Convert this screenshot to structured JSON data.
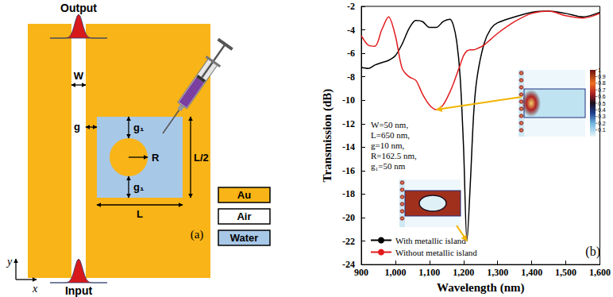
{
  "chart_data": {
    "type": "line",
    "x_label": "Wavelength (nm)",
    "y_label": "Transmission (dB)",
    "x": [
      900,
      920,
      940,
      960,
      980,
      1000,
      1020,
      1040,
      1060,
      1080,
      1100,
      1120,
      1140,
      1160,
      1170,
      1180,
      1190,
      1200,
      1210,
      1220,
      1230,
      1240,
      1260,
      1280,
      1300,
      1350,
      1400,
      1450,
      1500,
      1550,
      1600
    ],
    "xlim": [
      900,
      1600
    ],
    "xticks": [
      900,
      1000,
      1100,
      1200,
      1300,
      1400,
      1500,
      1600
    ],
    "ylim": [
      -24,
      -2
    ],
    "yticks": [
      -24,
      -22,
      -20,
      -18,
      -16,
      -14,
      -12,
      -10,
      -8,
      -6,
      -4,
      -2
    ],
    "grid": false,
    "legend": "lower left",
    "series": [
      {
        "name": "With metallic island",
        "color": "#000000",
        "values": [
          -7.2,
          -7.3,
          -7.0,
          -6.8,
          -6.6,
          -6.2,
          -5.2,
          -3.9,
          -3.2,
          -3.3,
          -3.8,
          -3.8,
          -3.3,
          -3.1,
          -3.6,
          -5.0,
          -8.0,
          -14.0,
          -22.0,
          -17.0,
          -11.0,
          -8.0,
          -5.2,
          -3.9,
          -3.4,
          -2.9,
          -2.5,
          -2.4,
          -2.6,
          -2.9,
          -2.5
        ]
      },
      {
        "name": "Without metallic island",
        "color": "#e31a1c",
        "values": [
          -4.5,
          -5.3,
          -5.4,
          -4.0,
          -2.9,
          -4.5,
          -7.3,
          -8.0,
          -8.3,
          -9.5,
          -10.4,
          -10.8,
          -10.4,
          -9.3,
          -8.6,
          -7.8,
          -7.0,
          -6.2,
          -5.8,
          -5.7,
          -5.7,
          -5.6,
          -5.3,
          -4.8,
          -4.3,
          -3.3,
          -2.6,
          -2.4,
          -2.8,
          -3.0,
          -2.6
        ]
      }
    ],
    "annotations": [
      "W=50 nm,",
      "L=650 nm,",
      "g=10 nm,",
      "R=162.5 nm,",
      "g₁=50 nm"
    ],
    "panel_label": "(b)",
    "colorbar": {
      "range": [
        0,
        1
      ],
      "ticks": [
        0.1,
        0.2,
        0.3,
        0.4,
        0.5,
        0.6,
        0.7,
        0.8,
        0.9,
        1
      ]
    }
  },
  "diagram": {
    "panel_label": "(a)",
    "ports": {
      "output": "Output",
      "input": "Input"
    },
    "dimensions": {
      "slot_width": "W",
      "gap": "g",
      "island_gap": "g₁",
      "radius": "R",
      "length": "L",
      "height": "L/2"
    },
    "materials": [
      {
        "label": "Au",
        "color": "#f9b417"
      },
      {
        "label": "Air",
        "color": "#ffffff"
      },
      {
        "label": "Water",
        "color": "#a8c8e8"
      }
    ],
    "axes": {
      "x": "x",
      "y": "y"
    }
  }
}
